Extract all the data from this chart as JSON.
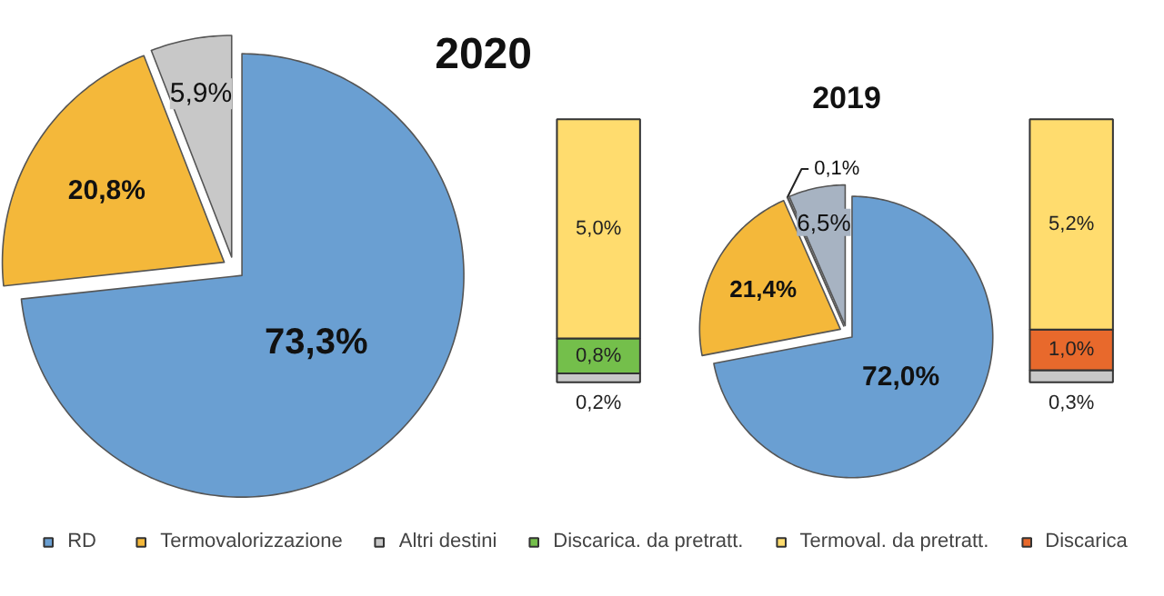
{
  "chart_data": [
    {
      "type": "pie",
      "title": "2020",
      "legend": "bottom",
      "categories": [
        "RD",
        "Termovalorizzazione",
        "Altri destini"
      ],
      "values": [
        73.3,
        20.8,
        5.9
      ],
      "colors": [
        "#6a9fd2",
        "#f4b83a",
        "#c8c8c8"
      ],
      "value_labels": [
        "73,3%",
        "20,8%",
        "5,9%"
      ]
    },
    {
      "type": "bar",
      "stacked": true,
      "legend": "bottom",
      "categories": [
        null
      ],
      "series": [
        {
          "color": "#c8c8c8",
          "values": [
            0.2
          ],
          "value_labels": [
            "0,2%"
          ]
        },
        {
          "name": "Discarica. da pretratt.",
          "color": "#74bf4b",
          "values": [
            0.8
          ],
          "value_labels": [
            "0,8%"
          ]
        },
        {
          "name": "Termoval. da pretratt.",
          "color": "#ffdc6e",
          "values": [
            5.0
          ],
          "value_labels": [
            "5,0%"
          ]
        }
      ]
    },
    {
      "type": "pie",
      "title": "2019",
      "legend": "bottom",
      "categories": [
        null,
        null,
        "Discarica",
        null
      ],
      "values": [
        72.0,
        21.4,
        0.1,
        6.5
      ],
      "colors": [
        "#6a9fd2",
        "#f4b83a",
        "#e8692c",
        "#a7b3c2"
      ],
      "value_labels": [
        "72,0%",
        "21,4%",
        "0,1%",
        "6,5%"
      ]
    },
    {
      "type": "bar",
      "stacked": true,
      "categories": [
        null
      ],
      "series": [
        {
          "color": "#c8c8c8",
          "values": [
            0.3
          ],
          "value_labels": [
            "0,3%"
          ]
        },
        {
          "color": "#e8692c",
          "values": [
            1.0
          ],
          "value_labels": [
            "1,0%"
          ]
        },
        {
          "color": "#ffdc6e",
          "values": [
            5.2
          ],
          "value_labels": [
            "5,2%"
          ]
        }
      ]
    }
  ]
}
